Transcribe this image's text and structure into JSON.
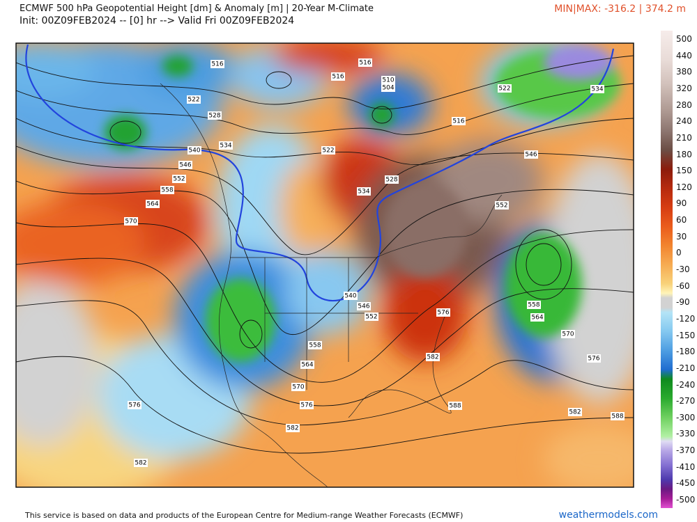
{
  "header": {
    "title": "ECMWF 500 hPa Geopotential Height [dm] & Anomaly [m] | 20-Year M-Climate",
    "init": "Init: 00Z09FEB2024 -- [0] hr --> Valid Fri 00Z09FEB2024",
    "minmax": "MIN|MAX: -316.2 | 374.2 m"
  },
  "colorbar": {
    "labels": [
      500,
      440,
      380,
      320,
      280,
      240,
      210,
      180,
      150,
      120,
      90,
      60,
      30,
      0,
      -30,
      -60,
      -90,
      -120,
      -150,
      -180,
      -210,
      -240,
      -270,
      -300,
      -330,
      -370,
      -410,
      -450,
      -500
    ]
  },
  "contour_labels": [
    "516",
    "516",
    "510",
    "504",
    "516",
    "522",
    "528",
    "534",
    "540",
    "546",
    "552",
    "558",
    "564",
    "570",
    "516",
    "522",
    "534",
    "546",
    "522",
    "528",
    "534",
    "552",
    "540",
    "546",
    "552",
    "576",
    "558",
    "564",
    "570",
    "576",
    "582",
    "558",
    "564",
    "570",
    "576",
    "582",
    "588",
    "582",
    "588",
    "576",
    "582"
  ],
  "footer": {
    "credit": "This service is based on data and products of the European Centre for Medium-range Weather Forecasts (ECMWF)",
    "site": "weathermodels.com"
  }
}
